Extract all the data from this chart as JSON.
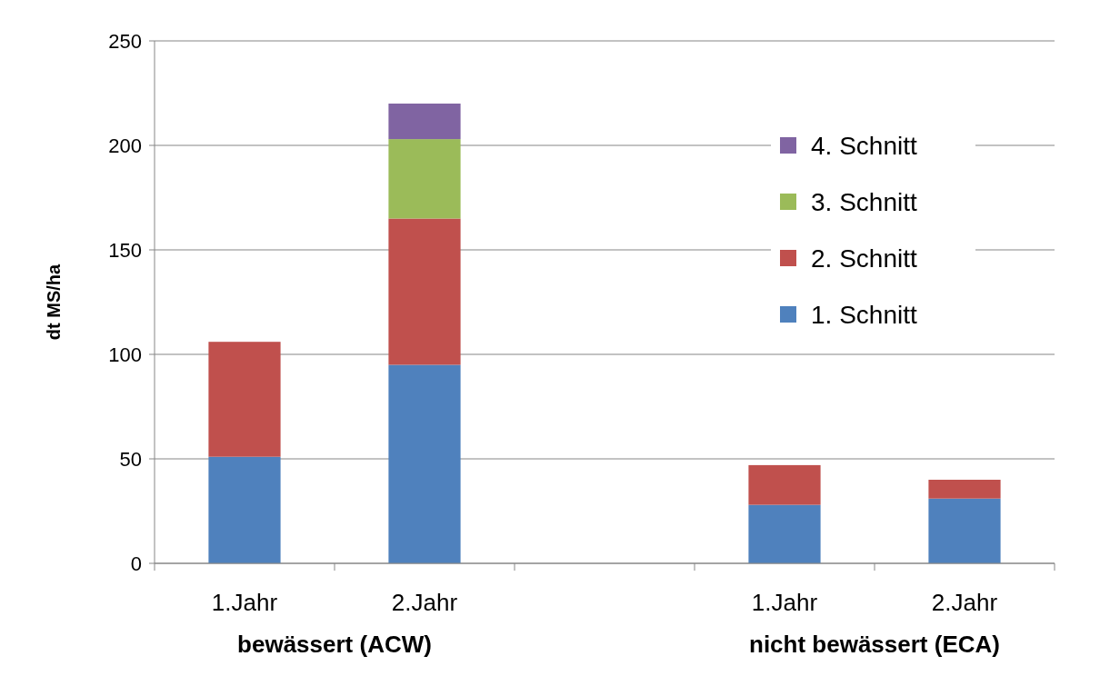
{
  "chart_data": {
    "type": "bar",
    "stacked": true,
    "ylabel": "dt MS/ha",
    "categories": [
      "1.Jahr",
      "2.Jahr",
      null,
      "1.Jahr",
      "2.Jahr"
    ],
    "series": [
      {
        "name": "1. Schnitt",
        "color": "#4f81bd",
        "values": [
          51,
          95,
          null,
          28,
          31
        ]
      },
      {
        "name": "2. Schnitt",
        "color": "#c0504d",
        "values": [
          55,
          70,
          null,
          19,
          9
        ]
      },
      {
        "name": "3. Schnitt",
        "color": "#9bbb59",
        "values": [
          null,
          38,
          null,
          null,
          null
        ]
      },
      {
        "name": "4. Schnitt",
        "color": "#8064a2",
        "values": [
          null,
          17,
          null,
          null,
          null
        ]
      }
    ],
    "ylim": [
      0,
      250
    ],
    "yticks": [
      0,
      50,
      100,
      150,
      200,
      250
    ],
    "grid": "y",
    "legend": "right",
    "annotations": [
      "bewässert (ACW)",
      "nicht bewässert (ECA)"
    ]
  }
}
